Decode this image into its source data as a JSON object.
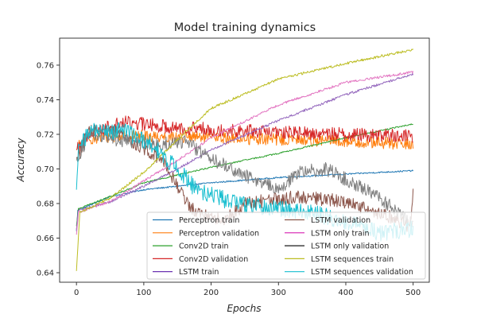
{
  "chart_data": {
    "type": "line",
    "title": "Model training dynamics",
    "xlabel": "Epochs",
    "ylabel": "Accuracy",
    "xlim": [
      -25,
      524
    ],
    "ylim": [
      0.6345,
      0.7756
    ],
    "xticks": [
      0,
      100,
      200,
      300,
      400,
      500
    ],
    "xtick_labels": [
      "0",
      "100",
      "200",
      "300",
      "400",
      "500"
    ],
    "yticks": [
      0.64,
      0.66,
      0.68,
      0.7,
      0.72,
      0.74,
      0.76
    ],
    "ytick_labels": [
      "0.64",
      "0.66",
      "0.68",
      "0.70",
      "0.72",
      "0.74",
      "0.76"
    ],
    "grid": false,
    "legend_position": "lower-right",
    "legend_columns": 2,
    "epochs": 500,
    "series": [
      {
        "name": "Perceptron train",
        "color": "#1f77b4",
        "legend_color": "#1f77b4",
        "noise": 0.0004,
        "points": [
          [
            0,
            0.664
          ],
          [
            2,
            0.676
          ],
          [
            50,
            0.684
          ],
          [
            100,
            0.688
          ],
          [
            200,
            0.692
          ],
          [
            300,
            0.695
          ],
          [
            400,
            0.697
          ],
          [
            500,
            0.699
          ]
        ]
      },
      {
        "name": "Perceptron validation",
        "color": "#ff7f0e",
        "legend_color": "#ff7f0e",
        "noise": 0.0035,
        "points": [
          [
            0,
            0.711
          ],
          [
            10,
            0.717
          ],
          [
            50,
            0.719
          ],
          [
            100,
            0.719
          ],
          [
            200,
            0.718
          ],
          [
            300,
            0.717
          ],
          [
            400,
            0.716
          ],
          [
            500,
            0.714
          ]
        ]
      },
      {
        "name": "Conv2D train",
        "color": "#2ca02c",
        "legend_color": "#2ca02c",
        "noise": 0.0004,
        "points": [
          [
            0,
            0.667
          ],
          [
            3,
            0.677
          ],
          [
            50,
            0.684
          ],
          [
            100,
            0.692
          ],
          [
            200,
            0.701
          ],
          [
            300,
            0.709
          ],
          [
            400,
            0.718
          ],
          [
            500,
            0.726
          ]
        ]
      },
      {
        "name": "Conv2D validation",
        "color": "#d62728",
        "legend_color": "#d62728",
        "noise": 0.004,
        "points": [
          [
            0,
            0.711
          ],
          [
            20,
            0.721
          ],
          [
            70,
            0.727
          ],
          [
            150,
            0.724
          ],
          [
            300,
            0.721
          ],
          [
            500,
            0.719
          ]
        ]
      },
      {
        "name": "LSTM train",
        "color": "#9467bd",
        "legend_color": "#5a1aa8",
        "noise": 0.0007,
        "points": [
          [
            0,
            0.665
          ],
          [
            3,
            0.676
          ],
          [
            50,
            0.681
          ],
          [
            100,
            0.69
          ],
          [
            150,
            0.7
          ],
          [
            200,
            0.711
          ],
          [
            300,
            0.728
          ],
          [
            400,
            0.743
          ],
          [
            500,
            0.755
          ]
        ]
      },
      {
        "name": "LSTM validation",
        "color": "#8c564b",
        "legend_color": "#8c564b",
        "noise": 0.004,
        "points": [
          [
            0,
            0.706
          ],
          [
            20,
            0.722
          ],
          [
            60,
            0.721
          ],
          [
            90,
            0.714
          ],
          [
            130,
            0.705
          ],
          [
            150,
            0.69
          ],
          [
            170,
            0.677
          ],
          [
            220,
            0.67
          ],
          [
            250,
            0.68
          ],
          [
            330,
            0.684
          ],
          [
            400,
            0.681
          ],
          [
            460,
            0.673
          ],
          [
            495,
            0.667
          ],
          [
            500,
            0.685
          ]
        ]
      },
      {
        "name": "LSTM only train",
        "color": "#e377c2",
        "legend_color": "#d61fb0",
        "noise": 0.0007,
        "points": [
          [
            0,
            0.662
          ],
          [
            3,
            0.675
          ],
          [
            50,
            0.681
          ],
          [
            100,
            0.693
          ],
          [
            150,
            0.705
          ],
          [
            200,
            0.718
          ],
          [
            300,
            0.737
          ],
          [
            400,
            0.75
          ],
          [
            500,
            0.756
          ]
        ]
      },
      {
        "name": "LSTM only validation",
        "color": "#7f7f7f",
        "legend_color": "#1a1a1a",
        "noise": 0.004,
        "points": [
          [
            0,
            0.705
          ],
          [
            20,
            0.721
          ],
          [
            60,
            0.717
          ],
          [
            120,
            0.714
          ],
          [
            160,
            0.716
          ],
          [
            200,
            0.706
          ],
          [
            250,
            0.696
          ],
          [
            300,
            0.688
          ],
          [
            330,
            0.698
          ],
          [
            370,
            0.7
          ],
          [
            420,
            0.69
          ],
          [
            470,
            0.678
          ],
          [
            500,
            0.667
          ]
        ]
      },
      {
        "name": "LSTM sequences train",
        "color": "#bcbd22",
        "legend_color": "#bcbd22",
        "noise": 0.0007,
        "points": [
          [
            0,
            0.641
          ],
          [
            5,
            0.675
          ],
          [
            50,
            0.683
          ],
          [
            100,
            0.698
          ],
          [
            150,
            0.717
          ],
          [
            200,
            0.735
          ],
          [
            300,
            0.752
          ],
          [
            400,
            0.761
          ],
          [
            500,
            0.769
          ]
        ]
      },
      {
        "name": "LSTM sequences validation",
        "color": "#17becf",
        "legend_color": "#17becf",
        "noise": 0.005,
        "points": [
          [
            0,
            0.688
          ],
          [
            3,
            0.712
          ],
          [
            20,
            0.722
          ],
          [
            70,
            0.722
          ],
          [
            110,
            0.714
          ],
          [
            150,
            0.7
          ],
          [
            180,
            0.687
          ],
          [
            250,
            0.679
          ],
          [
            330,
            0.676
          ],
          [
            400,
            0.67
          ],
          [
            450,
            0.663
          ],
          [
            500,
            0.665
          ]
        ]
      }
    ]
  }
}
